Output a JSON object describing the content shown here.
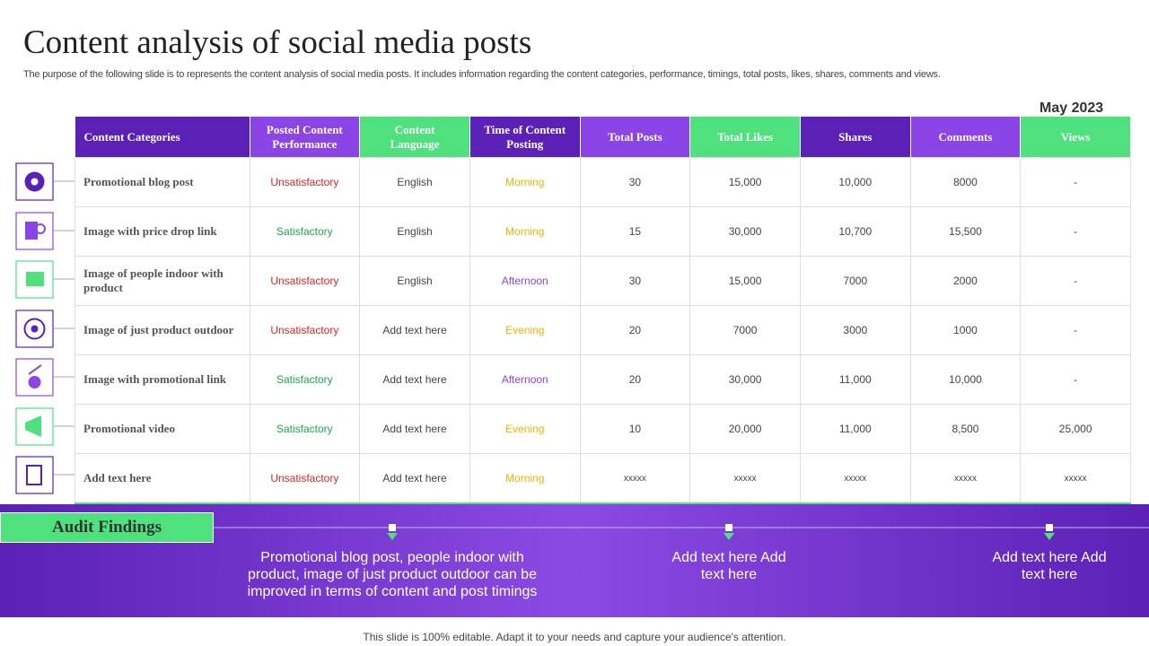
{
  "header": {
    "title": "Content analysis of social media posts",
    "subtitle": "The purpose of the following slide is to represents the content analysis of social media posts. It includes information regarding the content categories, performance, timings, total posts, likes, shares, comments and views.",
    "date": "May 2023"
  },
  "table": {
    "columns": [
      "Content Categories",
      "Posted Content Performance",
      "Content Language",
      "Time of Content Posting",
      "Total Posts",
      "Total Likes",
      "Shares",
      "Comments",
      "Views"
    ],
    "header_colors": [
      "#5b21b6",
      "#8b45e6",
      "#4ee17e",
      "#5b21b6",
      "#8b45e6",
      "#4ee17e",
      "#5b21b6",
      "#8b45e6",
      "#4ee17e"
    ],
    "rows": [
      {
        "cells": [
          "Promotional  blog post",
          "Unsatisfactory",
          "English",
          "Morning",
          "30",
          "15,000",
          "10,000",
          "8000",
          "-"
        ],
        "performance_color": "#e02424",
        "timing_color": "#f0b400"
      },
      {
        "cells": [
          "Image with price drop link",
          "Satisfactory",
          "English",
          "Morning",
          "15",
          "30,000",
          "10,700",
          "15,500",
          "-"
        ],
        "performance_color": "#1fa84a",
        "timing_color": "#f0b400"
      },
      {
        "cells": [
          "Image of people indoor with product",
          "Unsatisfactory",
          "English",
          "Afternoon",
          "30",
          "15,000",
          "7000",
          "2000",
          "-"
        ],
        "performance_color": "#e02424",
        "timing_color": "#8b45e6"
      },
      {
        "cells": [
          "Image of just product outdoor",
          "Unsatisfactory",
          "Add text here",
          "Evening",
          "20",
          "7000",
          "3000",
          "1000",
          "-"
        ],
        "performance_color": "#e02424",
        "timing_color": "#f0b400"
      },
      {
        "cells": [
          "Image with promotional link",
          "Satisfactory",
          "Add text here",
          "Afternoon",
          "20",
          "30,000",
          "11,000",
          "10,000",
          "-"
        ],
        "performance_color": "#1fa84a",
        "timing_color": "#8b45e6"
      },
      {
        "cells": [
          "Promotional video",
          "Satisfactory",
          "Add text here",
          "Evening",
          "10",
          "20,000",
          "11,000",
          "8,500",
          "25,000"
        ],
        "performance_color": "#1fa84a",
        "timing_color": "#f0b400"
      },
      {
        "cells": [
          "Add text here",
          "Unsatisfactory",
          "Add text here",
          "Morning",
          "xxxxx",
          "xxxxx",
          "xxxxx",
          "xxxxx",
          "xxxxx"
        ],
        "performance_color": "#e02424",
        "timing_color": "#f0b400"
      }
    ]
  },
  "audit": {
    "label": "Audit Findings",
    "findings": [
      "Promotional blog post, people indoor with product, image of just product outdoor can be improved in terms of content and post timings",
      "Add text here Add text here",
      "Add text here Add text here"
    ]
  },
  "footer": "This slide is 100% editable. Adapt it to your needs and capture your audience's attention."
}
